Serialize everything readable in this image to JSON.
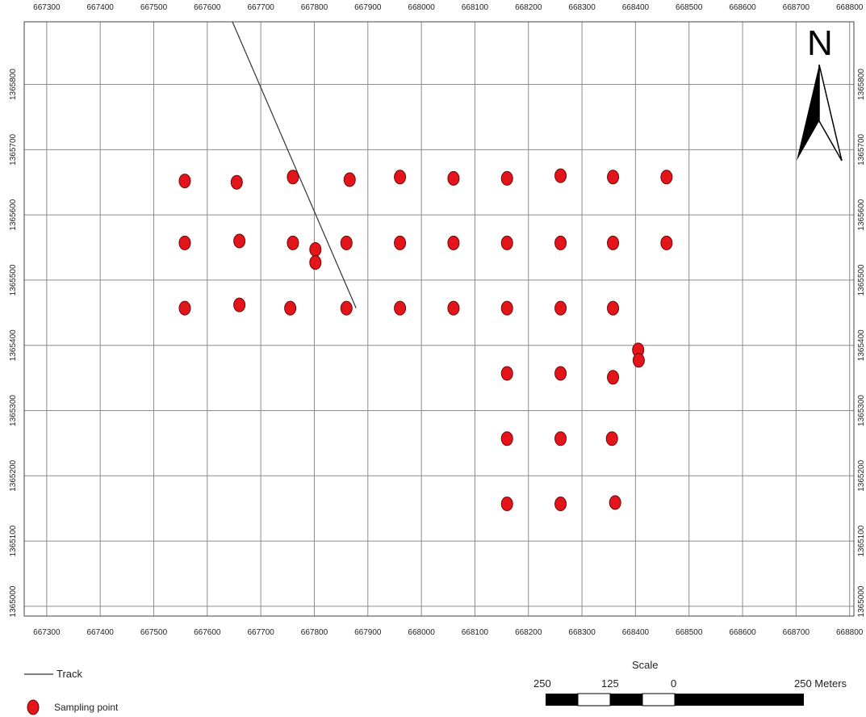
{
  "map": {
    "x_ticks": [
      667300,
      667400,
      667500,
      667600,
      667700,
      667800,
      667900,
      668000,
      668100,
      668200,
      668300,
      668400,
      668500,
      668600,
      668700,
      668800
    ],
    "y_ticks": [
      1365000,
      1365100,
      1365200,
      1365300,
      1365400,
      1365500,
      1365600,
      1365700,
      1365800
    ],
    "x_range": [
      667258,
      668808
    ],
    "y_range": [
      1364985,
      1365896
    ],
    "grid": true,
    "track": [
      [
        667647,
        1365896
      ],
      [
        667878,
        1365457
      ]
    ],
    "sampling_points": [
      [
        667558,
        1365652
      ],
      [
        667655,
        1365650
      ],
      [
        667760,
        1365658
      ],
      [
        667866,
        1365654
      ],
      [
        667960,
        1365658
      ],
      [
        668060,
        1365656
      ],
      [
        668160,
        1365656
      ],
      [
        668260,
        1365660
      ],
      [
        668358,
        1365658
      ],
      [
        668458,
        1365658
      ],
      [
        667558,
        1365557
      ],
      [
        667660,
        1365560
      ],
      [
        667760,
        1365557
      ],
      [
        667802,
        1365547
      ],
      [
        667802,
        1365527
      ],
      [
        667860,
        1365557
      ],
      [
        667960,
        1365557
      ],
      [
        668060,
        1365557
      ],
      [
        668160,
        1365557
      ],
      [
        668260,
        1365557
      ],
      [
        668358,
        1365557
      ],
      [
        668458,
        1365557
      ],
      [
        667558,
        1365457
      ],
      [
        667660,
        1365462
      ],
      [
        667755,
        1365457
      ],
      [
        667860,
        1365457
      ],
      [
        667960,
        1365457
      ],
      [
        668060,
        1365457
      ],
      [
        668160,
        1365457
      ],
      [
        668260,
        1365457
      ],
      [
        668358,
        1365457
      ],
      [
        668405,
        1365393
      ],
      [
        668406,
        1365377
      ],
      [
        668160,
        1365357
      ],
      [
        668260,
        1365357
      ],
      [
        668358,
        1365351
      ],
      [
        668160,
        1365257
      ],
      [
        668260,
        1365257
      ],
      [
        668356,
        1365257
      ],
      [
        668160,
        1365157
      ],
      [
        668260,
        1365157
      ],
      [
        668362,
        1365159
      ]
    ]
  },
  "north_arrow": {
    "letter": "N"
  },
  "legend": {
    "track_label": "Track",
    "sampling_label": "Sampling point",
    "track_color": "#333333",
    "point_color": "#e4141b"
  },
  "scale_bar": {
    "title": "Scale",
    "labels": [
      "250",
      "125",
      "0",
      "250 Meters"
    ]
  }
}
